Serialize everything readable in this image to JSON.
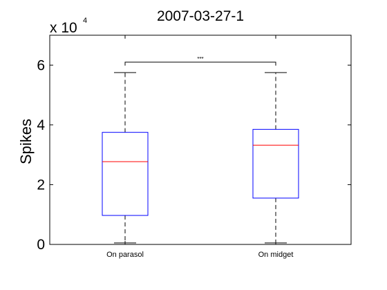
{
  "chart_data": {
    "type": "box",
    "title": "2007-03-27-1",
    "ylabel": "Spikes",
    "xlabel": "",
    "y_scale_label": {
      "base": "x 10",
      "exponent": "4"
    },
    "y_multiplier": 10000,
    "ylim": [
      0,
      7
    ],
    "yticks": [
      0,
      2,
      4,
      6
    ],
    "grid": false,
    "categories": [
      "On parasol",
      "On midget"
    ],
    "boxes": [
      {
        "category": "On parasol",
        "min": 0.05,
        "q1": 0.97,
        "median": 2.77,
        "q3": 3.75,
        "max": 5.75
      },
      {
        "category": "On midget",
        "min": 0.05,
        "q1": 1.55,
        "median": 3.32,
        "q3": 3.85,
        "max": 5.75
      }
    ],
    "significance": {
      "between": [
        "On parasol",
        "On midget"
      ],
      "label": "***",
      "level": 6.1
    },
    "colors": {
      "box": "#0000ff",
      "median": "#ff0000",
      "whisker": "#000000",
      "axes": "#000000"
    }
  }
}
